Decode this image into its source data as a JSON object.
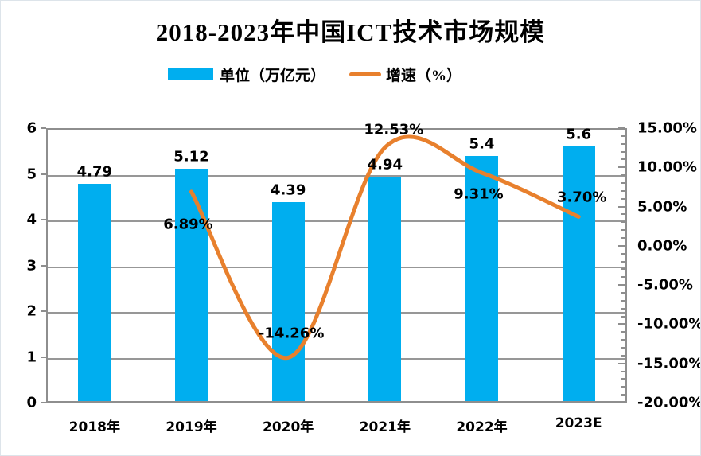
{
  "title": "2018-2023年中国ICT技术市场规模",
  "legend": [
    {
      "label": "单位（万亿元）",
      "type": "bar",
      "color": "#00AEEF"
    },
    {
      "label": "增速（%）",
      "type": "line",
      "color": "#E8802D"
    }
  ],
  "chart_data": {
    "type": "bar",
    "subtype": "combo-bar-line",
    "title": "2018-2023年中国ICT技术市场规模",
    "categories": [
      "2018年",
      "2019年",
      "2020年",
      "2021年",
      "2022年",
      "2023E"
    ],
    "series": [
      {
        "name": "单位（万亿元）",
        "type": "bar",
        "axis": "left",
        "color": "#00AEEF",
        "values": [
          4.79,
          5.12,
          4.39,
          4.94,
          5.4,
          5.6
        ],
        "labels": [
          "4.79",
          "5.12",
          "4.39",
          "4.94",
          "5.4",
          "5.6"
        ]
      },
      {
        "name": "增速（%）",
        "type": "line",
        "axis": "right",
        "color": "#E8802D",
        "smooth": true,
        "values": [
          null,
          6.89,
          -14.26,
          12.53,
          9.31,
          3.7
        ],
        "labels": [
          null,
          "6.89%",
          "-14.26%",
          "12.53%",
          "9.31%",
          "3.70%"
        ]
      }
    ],
    "left_axis": {
      "min": 0,
      "max": 6,
      "ticks": [
        "6",
        "5",
        "4",
        "3",
        "2",
        "1",
        "0"
      ]
    },
    "right_axis": {
      "min": -20,
      "max": 15,
      "major_step": 5,
      "minor_step": 1,
      "ticks": [
        "15.00%",
        "10.00%",
        "5.00%",
        "0.00%",
        "-5.00%",
        "-10.00%",
        "-15.00%",
        "-20.00%"
      ]
    },
    "grid": true,
    "legend_position": "top",
    "layout": {
      "grid_color": "#979797",
      "line_label_offsets": [
        null,
        [
          -4,
          41
        ],
        [
          4,
          -30
        ],
        [
          11,
          -22
        ],
        [
          -4,
          27
        ],
        [
          4,
          -24
        ]
      ],
      "bar_label_dy": -15
    }
  }
}
